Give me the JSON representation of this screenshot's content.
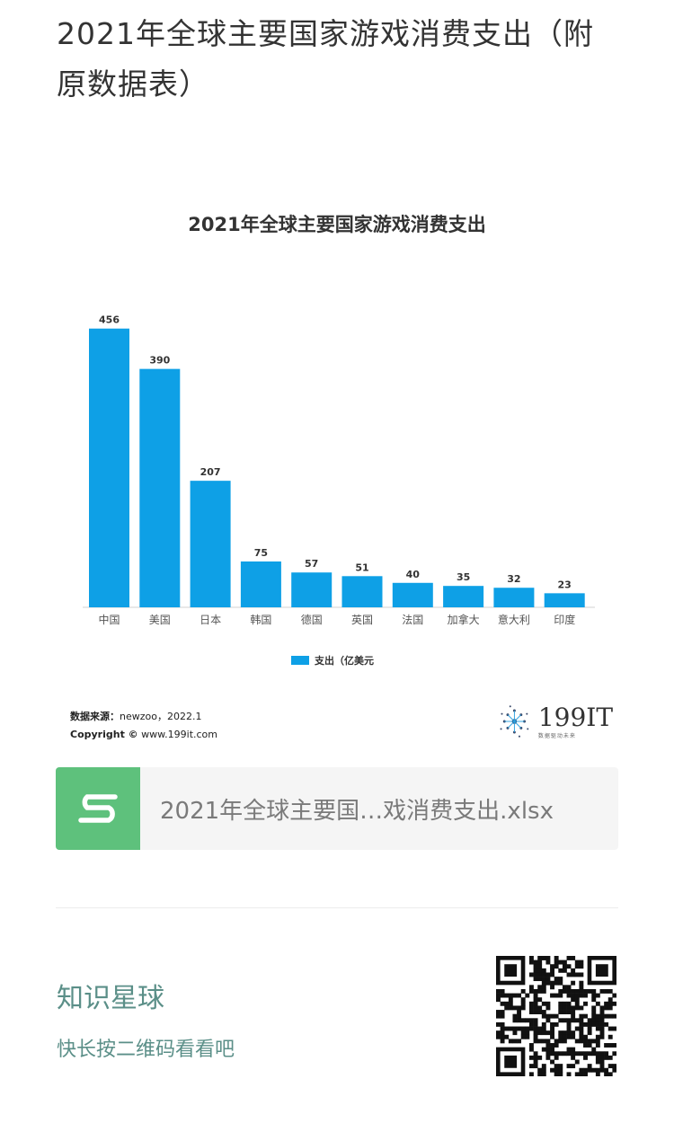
{
  "article": {
    "title": "2021年全球主要国家游戏消费支出（附原数据表）"
  },
  "chart_data": {
    "type": "bar",
    "title": "2021年全球主要国家游戏消费支出",
    "categories": [
      "中国",
      "美国",
      "日本",
      "韩国",
      "德国",
      "英国",
      "法国",
      "加拿大",
      "意大利",
      "印度"
    ],
    "series": [
      {
        "name": "支出（亿美元",
        "values": [
          456,
          390,
          207,
          75,
          57,
          51,
          40,
          35,
          32,
          23
        ]
      }
    ],
    "ylim": [
      0,
      460
    ],
    "grid": false,
    "legend_position": "bottom",
    "bar_color": "#0ea0e6"
  },
  "source": {
    "label": "数据来源：",
    "text": "newzoo，2022.1",
    "copyright_label": "Copyright ©",
    "copyright_text": " www.199it.com"
  },
  "brand": {
    "name": "199IT",
    "slogan": "数据驱动未来"
  },
  "attachment": {
    "file_name": "2021年全球主要国…戏消费支出.xlsx",
    "icon": "spreadsheet-s-icon",
    "icon_color": "#5ec17c"
  },
  "footer": {
    "title": "知识星球",
    "subtitle": "快长按二维码看看吧",
    "qr_icon": "qr-code-icon"
  }
}
